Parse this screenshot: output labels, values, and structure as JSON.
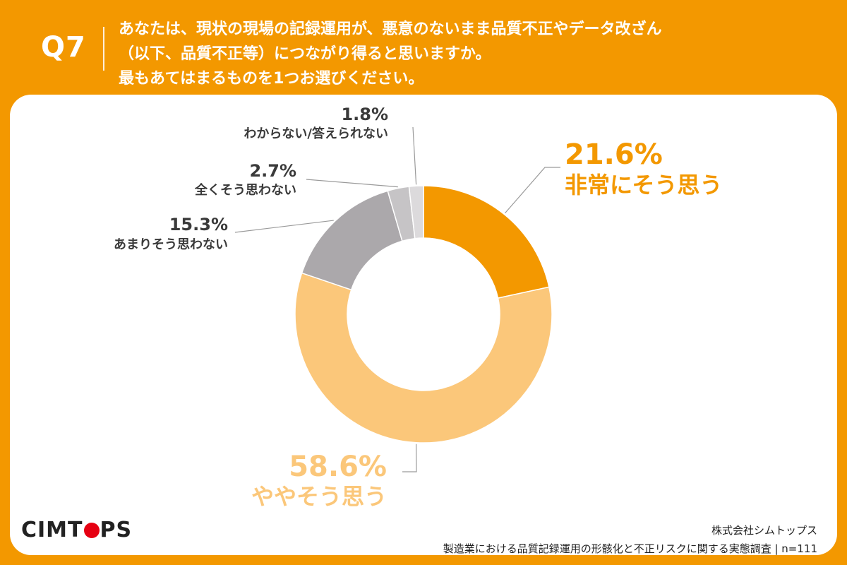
{
  "header": {
    "question_number": "Q7",
    "question_lines": [
      "あなたは、現状の現場の記録運用が、悪意のないまま品質不正やデータ改ざん",
      "（以下、品質不正等）につながり得ると思いますか。",
      "最もあてはまるものを1つお選びください。"
    ]
  },
  "chart_data": {
    "type": "pie",
    "donut": true,
    "categories": [
      "非常にそう思う",
      "ややそう思う",
      "あまりそう思わない",
      "全くそう思わない",
      "わからない/答えられない"
    ],
    "values": [
      21.6,
      58.6,
      15.3,
      2.7,
      1.8
    ],
    "value_labels": [
      "21.6%",
      "58.6%",
      "15.3%",
      "2.7%",
      "1.8%"
    ],
    "colors": [
      "#F39800",
      "#FBC77A",
      "#ABA8AB",
      "#C6C4C6",
      "#DCDADC"
    ],
    "label_colors": [
      "#F39800",
      "#FBC77A",
      "#3A3A3A",
      "#3A3A3A",
      "#3A3A3A"
    ],
    "start_angle_deg": 0,
    "direction": "clockwise"
  },
  "footer": {
    "logo_before": "CIMT",
    "logo_after": "PS",
    "source_company": "株式会社シムトップス",
    "source_survey": "製造業における品質記録運用の形骸化と不正リスクに関する実態調査 | n=111"
  },
  "colors": {
    "brand_orange": "#F39800",
    "logo_red": "#E60012",
    "text_dark": "#3A3A3A"
  }
}
